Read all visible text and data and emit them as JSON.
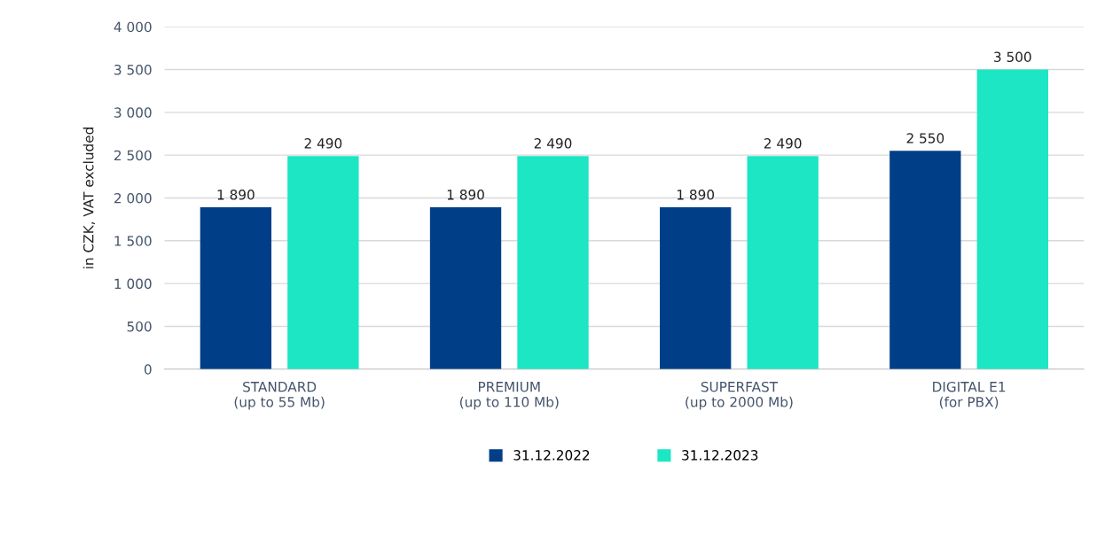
{
  "chart_data": {
    "type": "bar",
    "ylabel": "in CZK, VAT excluded",
    "categories": [
      "STANDARD\n(up to 55 Mb)",
      "PREMIUM\n(up to 110 Mb)",
      "SUPERFAST\n(up to 2000 Mb)",
      "DIGITAL E1\n(for PBX)"
    ],
    "series": [
      {
        "name": "31.12.2022",
        "color": "#003f87",
        "values": [
          1890,
          1890,
          1890,
          2550
        ],
        "value_labels": [
          "1 890",
          "1 890",
          "1 890",
          "2 550"
        ]
      },
      {
        "name": "31.12.2023",
        "color": "#1ce6c4",
        "values": [
          2490,
          2490,
          2490,
          3500
        ],
        "value_labels": [
          "2 490",
          "2 490",
          "2 490",
          "3 500"
        ]
      }
    ],
    "ylim": [
      0,
      4000
    ],
    "yticks": [
      {
        "value": 0,
        "label": "0"
      },
      {
        "value": 500,
        "label": "500"
      },
      {
        "value": 1000,
        "label": "1 000"
      },
      {
        "value": 1500,
        "label": "1 500"
      },
      {
        "value": 2000,
        "label": "2 000"
      },
      {
        "value": 2500,
        "label": "2 500"
      },
      {
        "value": 3000,
        "label": "3 000"
      },
      {
        "value": 3500,
        "label": "3 500"
      },
      {
        "value": 4000,
        "label": "4 000"
      }
    ],
    "grid": "y",
    "legend": "bottom"
  }
}
